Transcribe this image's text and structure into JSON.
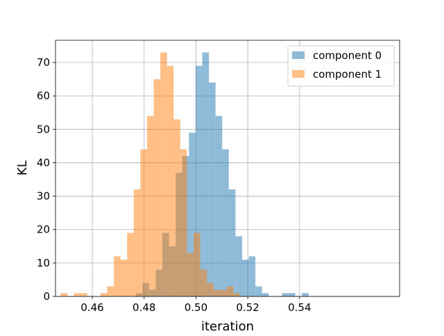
{
  "chart_data": {
    "type": "histogram",
    "xlabel": "iteration",
    "ylabel": "KL",
    "xlim": [
      0.4458,
      0.5786
    ],
    "ylim": [
      0,
      76.65
    ],
    "xticks": [
      0.46,
      0.48,
      0.5,
      0.52,
      0.54
    ],
    "xtick_labels": [
      "0.46",
      "0.48",
      "0.50",
      "0.52",
      "0.54"
    ],
    "yticks": [
      0,
      10,
      20,
      30,
      40,
      50,
      60,
      70
    ],
    "ytick_labels": [
      "0",
      "10",
      "20",
      "30",
      "40",
      "50",
      "60",
      "70"
    ],
    "grid": true,
    "legend_position": "top-right",
    "series": [
      {
        "name": "component 0",
        "color": "#1f77b4",
        "opacity": 0.5,
        "bin_start": 0.4768,
        "bin_width": 0.002564,
        "counts": [
          1,
          4,
          2,
          8,
          19,
          15,
          37,
          42,
          49,
          69,
          73,
          64,
          54,
          44,
          32,
          18,
          11,
          12,
          3,
          1,
          0,
          0,
          1,
          1,
          0,
          1
        ]
      },
      {
        "name": "component 1",
        "color": "#ff7f0e",
        "opacity": 0.5,
        "bin_start": 0.4478,
        "bin_width": 0.002564,
        "counts": [
          1,
          0,
          1,
          1,
          0,
          0,
          1,
          3,
          12,
          11,
          19,
          32,
          44,
          54,
          65,
          73,
          69,
          53,
          44,
          13,
          19,
          8,
          4,
          2,
          2,
          3,
          1
        ]
      }
    ]
  }
}
